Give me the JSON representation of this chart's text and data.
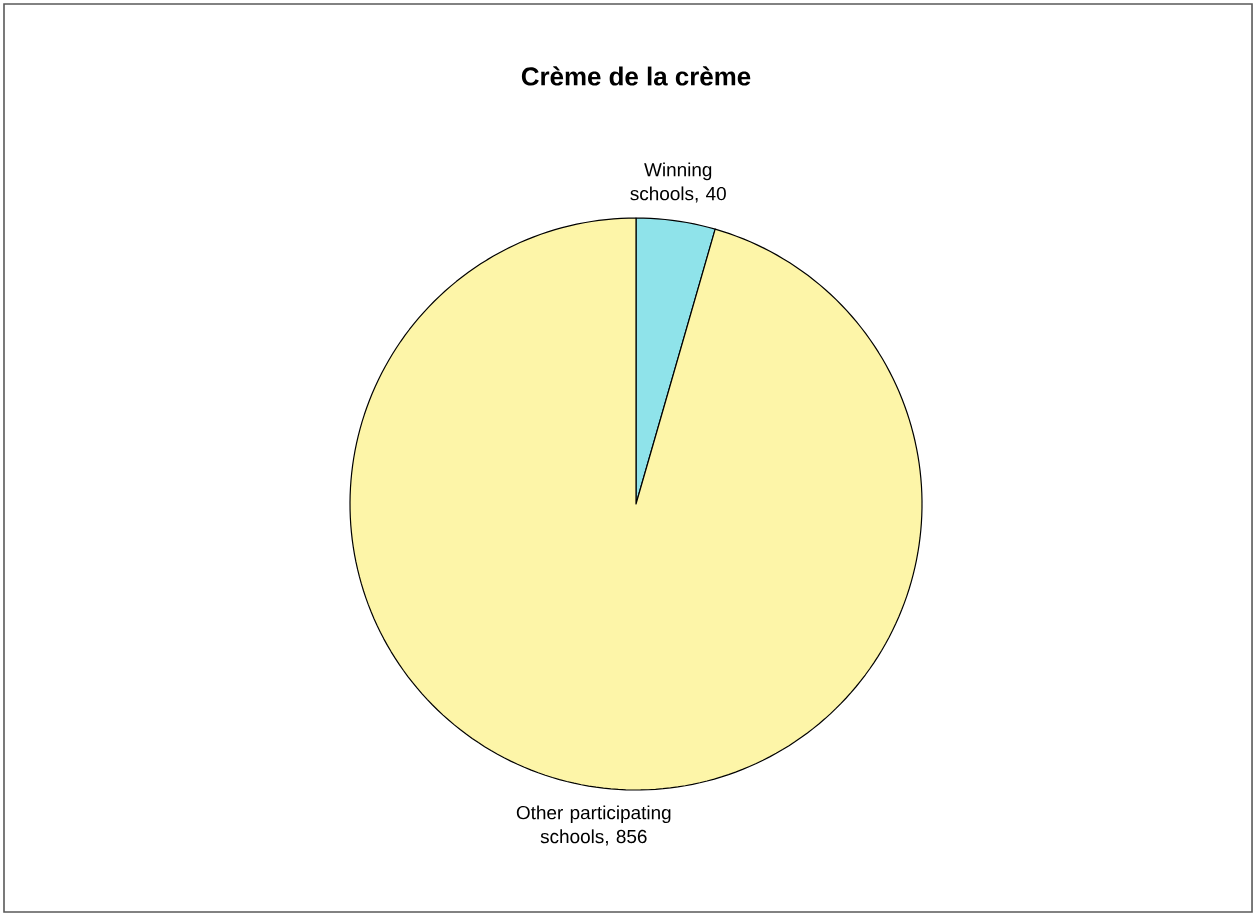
{
  "chart_data": {
    "type": "pie",
    "title": "Crème de la crème",
    "categories": [
      "Winning schools",
      "Other participating schools"
    ],
    "values": [
      40,
      856
    ],
    "colors": [
      "#8fe3ea",
      "#fdf5a8"
    ],
    "value_labels": [
      ", 40",
      ", 856"
    ]
  }
}
